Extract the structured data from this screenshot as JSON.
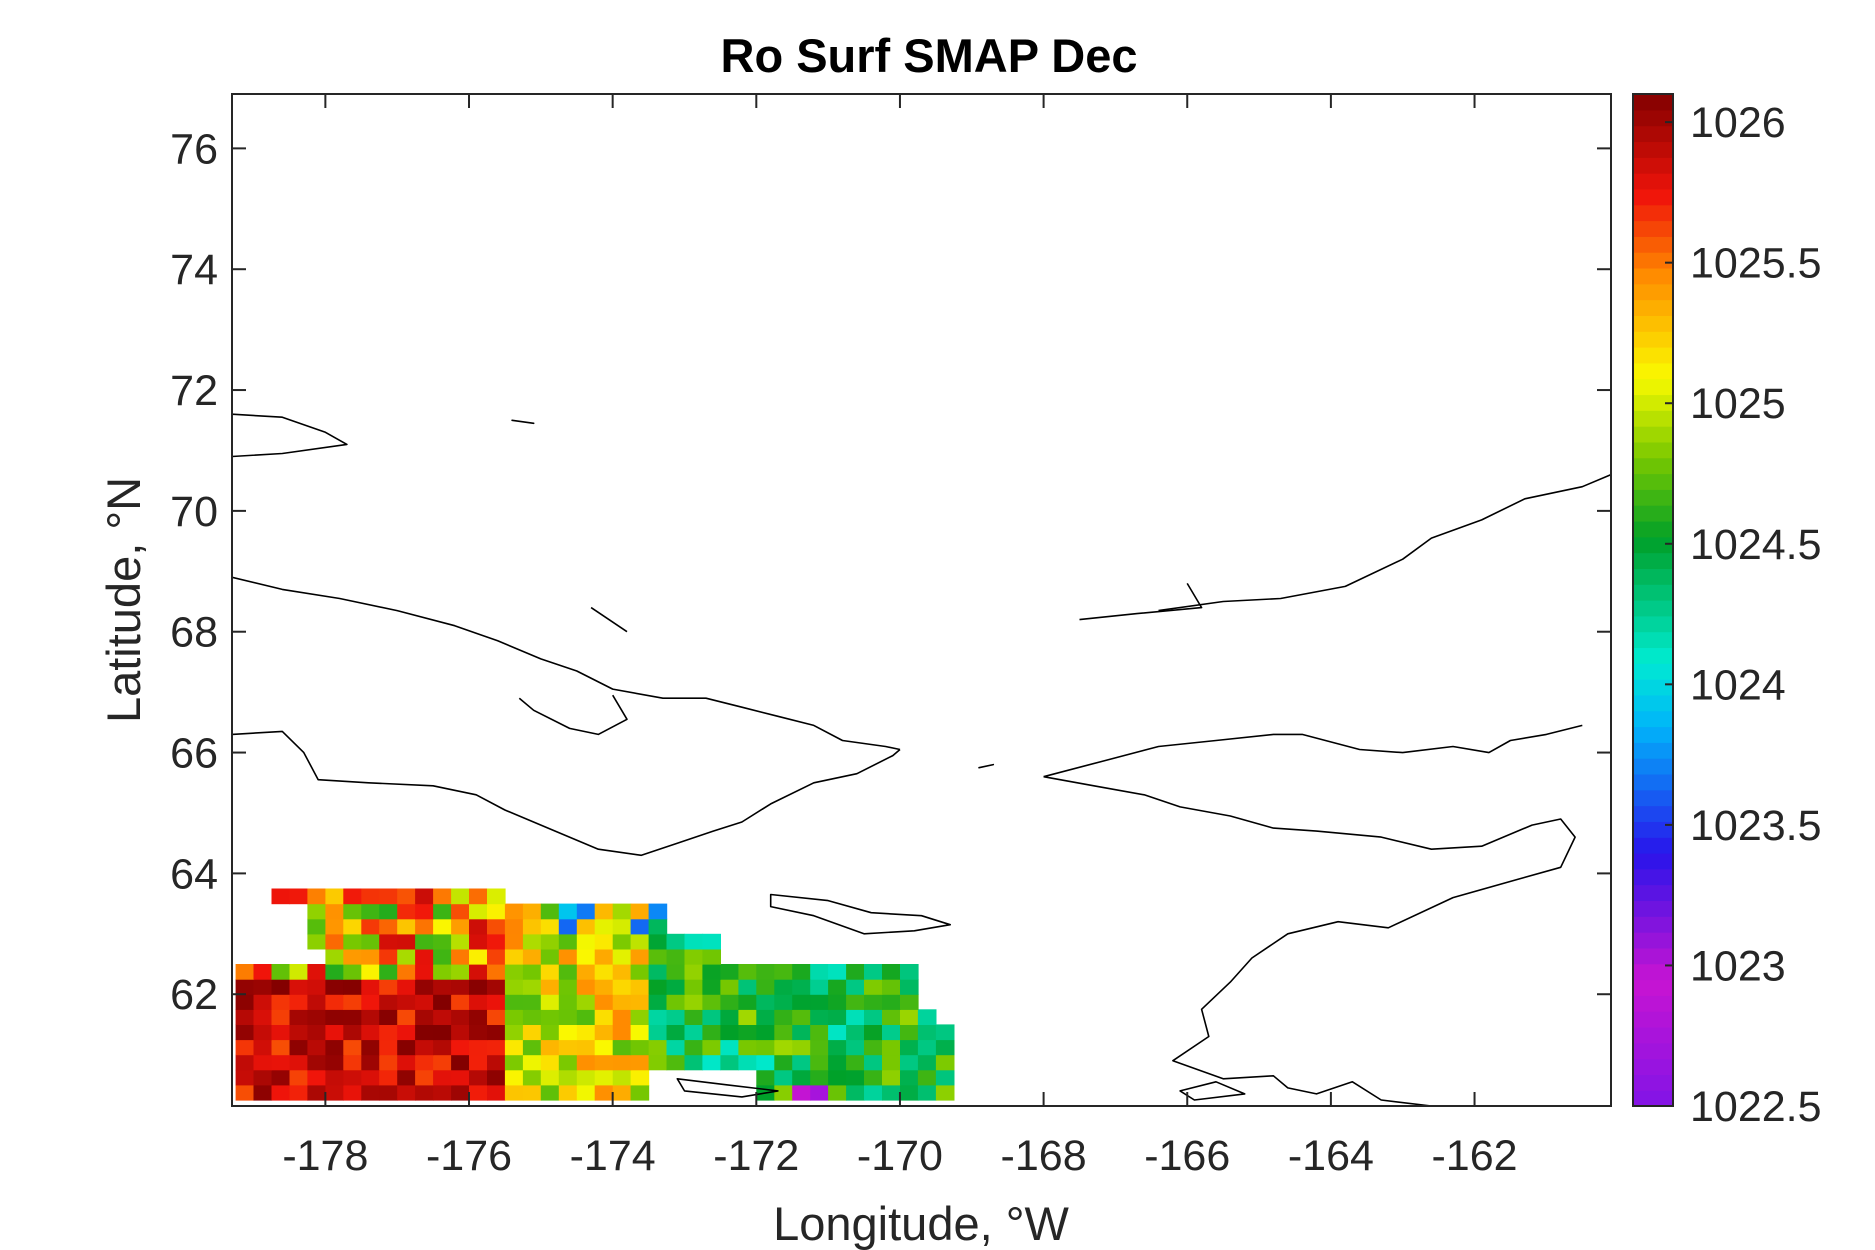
{
  "chart_data": {
    "type": "heatmap",
    "title": "Ro Surf SMAP Dec",
    "xlabel": "Longitude, °W",
    "ylabel": "Latitude, °N",
    "xlim": [
      -179.3,
      -160.1
    ],
    "ylim": [
      60.15,
      76.9
    ],
    "xticks": [
      -178,
      -176,
      -174,
      -172,
      -170,
      -168,
      -166,
      -164,
      -162
    ],
    "xtick_labels": [
      "-178",
      "-176",
      "-174",
      "-172",
      "-170",
      "-168",
      "-166",
      "-164",
      "-162"
    ],
    "yticks": [
      62,
      64,
      66,
      68,
      70,
      72,
      74,
      76
    ],
    "ytick_labels": [
      "62",
      "64",
      "66",
      "68",
      "70",
      "72",
      "74",
      "76"
    ],
    "colorbar": {
      "colormap": "jet-like (violet-blue-cyan-green-yellow-red-darkred)",
      "clim": [
        1022.5,
        1026.1
      ],
      "ticks": [
        1022.5,
        1023,
        1023.5,
        1024,
        1024.5,
        1025,
        1025.5,
        1026
      ],
      "tick_labels": [
        "1022.5",
        "1023",
        "1023.5",
        "1024",
        "1024.5",
        "1025",
        "1025.5",
        "1026"
      ]
    },
    "grid": false,
    "cell_size_deg": [
      0.25,
      0.25
    ],
    "data_extent": {
      "lon": [
        -179.25,
        -169.0
      ],
      "lat": [
        60.25,
        63.75
      ]
    },
    "data_pattern": "West (-179 to -175.5) values ~1025.6-1026.1 (red/dark red); center (-175 to -173.5) ~1025.0-1025.4 (yellow/orange) with green patches; east (-173 to -169) ~1024.2-1024.8 (green/yellow-green) with scattered cyan/blue cells near 63N and violet cells near 60.5N.",
    "colors": {
      "land_outline": "#000000",
      "background": "#ffffff",
      "axis": "#262626"
    }
  }
}
